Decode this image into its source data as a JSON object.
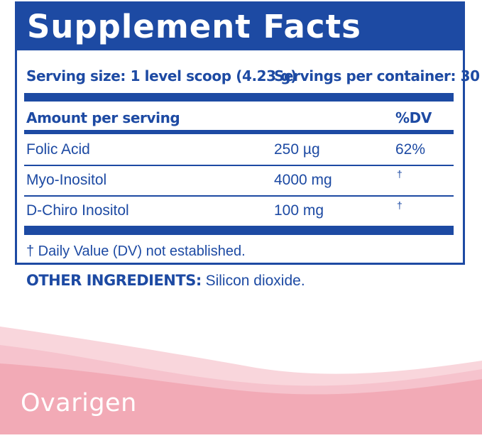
{
  "panel": {
    "title": "Supplement Facts",
    "serving_size": "Serving size: 1 level scoop (4.23 g)",
    "servings_per_container": "Servings per container: 30",
    "amount_header": "Amount per serving",
    "dv_header": "%DV",
    "rows": [
      {
        "name": "Folic Acid",
        "amount": "250 µg",
        "dv": "62%"
      },
      {
        "name": "Myo-Inositol",
        "amount": "4000 mg",
        "dv": "†"
      },
      {
        "name": "D-Chiro Inositol",
        "amount": "100 mg",
        "dv": "†"
      }
    ],
    "footnote": "† Daily Value (DV) not established."
  },
  "other_ingredients": {
    "label": "OTHER INGREDIENTS:",
    "value": " Silicon dioxide."
  },
  "brand": "Ovarigen",
  "colors": {
    "primary": "#1d4aa3",
    "pink_light": "#f9d6dc",
    "pink": "#f2aab6"
  }
}
